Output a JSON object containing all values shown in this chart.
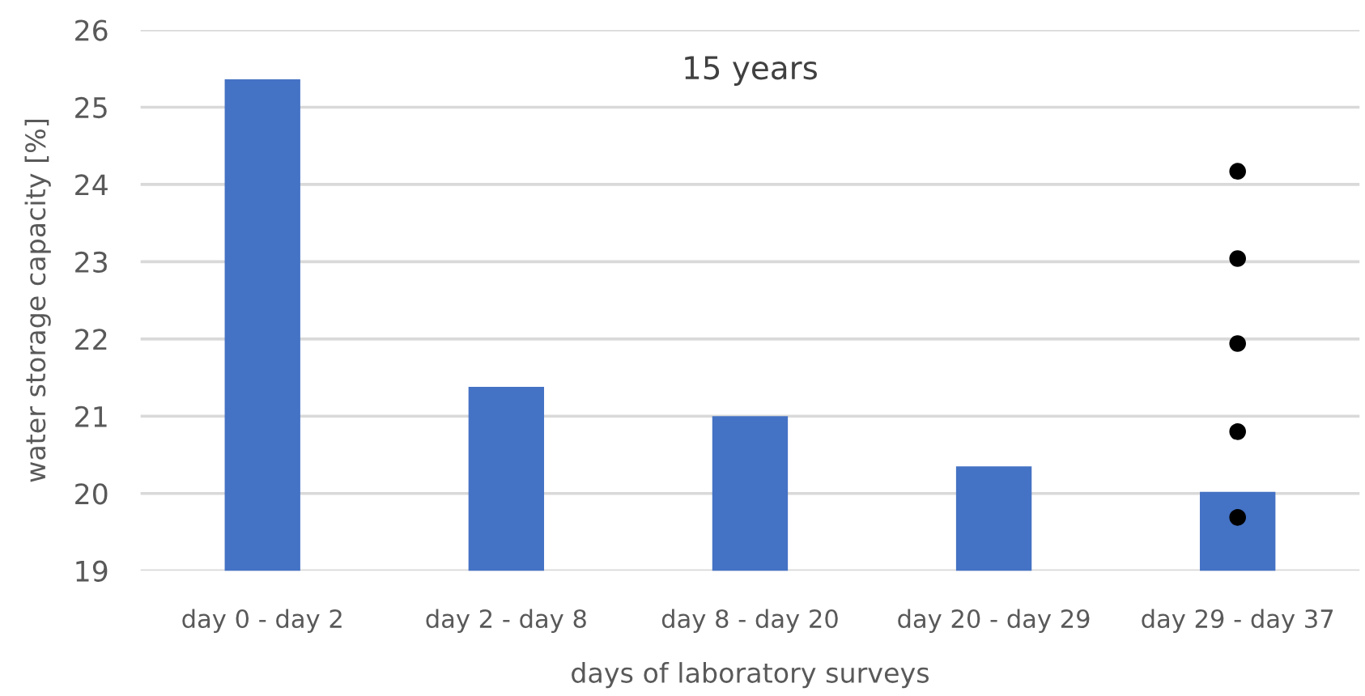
{
  "chart_data": {
    "type": "bar",
    "title": "15 years",
    "xlabel": "days of laboratory surveys",
    "ylabel": "water storage capacity [%]",
    "categories": [
      "day 0 - day 2",
      "day 2 - day 8",
      "day 8 - day 20",
      "day 20 - day 29",
      "day 29 - day 37"
    ],
    "series": [
      {
        "color": "#4472c4",
        "values": [
          25.36,
          21.38,
          21.0,
          20.35,
          20.02
        ]
      },
      {
        "type": "scatter",
        "color": "#000000",
        "marker": "circle",
        "x": [
          "day 29 - day 37",
          "day 29 - day 37",
          "day 29 - day 37",
          "day 29 - day 37",
          "day 29 - day 37"
        ],
        "values": [
          24.17,
          23.04,
          21.94,
          20.8,
          19.69
        ]
      }
    ],
    "ylim": [
      19,
      26
    ],
    "yticks": [
      19,
      20,
      21,
      22,
      23,
      24,
      25,
      26
    ],
    "grid": "y"
  }
}
